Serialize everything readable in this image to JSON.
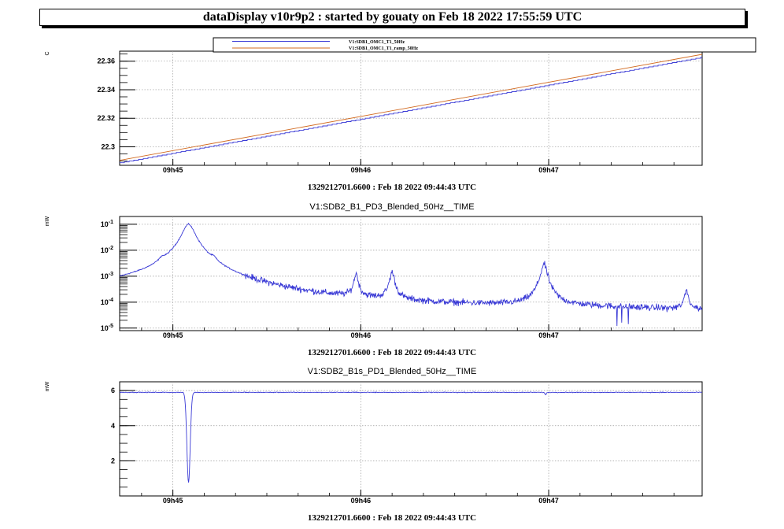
{
  "header": {
    "title": "dataDisplay v10r9p2 : started by gouaty on Feb 18 2022 17:55:59 UTC"
  },
  "colors": {
    "blue": "#3b3bd6",
    "orange": "#d2691e",
    "grid": "#9a9a9a"
  },
  "chart_data": [
    {
      "type": "line",
      "title": "",
      "unit_label": "C",
      "xlabel": "1329212701.6600 : Feb 18 2022 09:44:43 UTC",
      "x_ticks": [
        "09h45",
        "09h46",
        "09h47"
      ],
      "x_tick_seconds": [
        17,
        77,
        137
      ],
      "xlim_seconds": [
        0,
        186
      ],
      "ylim": [
        22.287,
        22.367
      ],
      "y_ticks": [
        "22.3",
        "22.32",
        "22.34",
        "22.36"
      ],
      "y_tick_values": [
        22.3,
        22.32,
        22.34,
        22.36
      ],
      "y_scale": "linear",
      "grid": true,
      "legend": {
        "placement": "top",
        "entries": [
          "V1:SDB1_OMC1_T1_50Hz",
          "V1:SDB1_OMC1_T1_ramp_50Hz"
        ]
      },
      "series": [
        {
          "name": "V1:SDB1_OMC1_T1_50Hz",
          "color": "blue",
          "x": [
            0,
            186
          ],
          "values": [
            22.2885,
            22.3625
          ],
          "stepped": true
        },
        {
          "name": "V1:SDB1_OMC1_T1_ramp_50Hz",
          "color": "orange",
          "x": [
            0,
            186
          ],
          "values": [
            22.2905,
            22.3648
          ]
        }
      ]
    },
    {
      "type": "line",
      "title": "V1:SDB2_B1_PD3_Blended_50Hz__TIME",
      "unit_label": "mW",
      "xlabel": "1329212701.6600 : Feb 18 2022 09:44:43 UTC",
      "x_ticks": [
        "09h45",
        "09h46",
        "09h47"
      ],
      "x_tick_seconds": [
        17,
        77,
        137
      ],
      "xlim_seconds": [
        0,
        186
      ],
      "ylim": [
        8e-06,
        0.2
      ],
      "y_scale": "log",
      "y_tick_labels": [
        {
          "base": "10",
          "exp": "-1",
          "value": 0.1
        },
        {
          "base": "10",
          "exp": "-2",
          "value": 0.01
        },
        {
          "base": "10",
          "exp": "-3",
          "value": 0.001
        },
        {
          "base": "10",
          "exp": "-4",
          "value": 0.0001
        },
        {
          "base": "10",
          "exp": "-5",
          "value": 1e-05
        }
      ],
      "grid": true,
      "series": [
        {
          "name": "",
          "color": "blue",
          "baseline_points": [
            [
              0,
              0.00035
            ],
            [
              10,
              0.00045
            ],
            [
              14,
              0.0006
            ],
            [
              18,
              0.0008
            ],
            [
              20,
              0.0007
            ],
            [
              25,
              0.0006
            ],
            [
              35,
              0.00012
            ],
            [
              60,
              6e-05
            ],
            [
              100,
              5e-05
            ],
            [
              150,
              5e-05
            ],
            [
              186,
              4e-05
            ]
          ],
          "peaks": [
            {
              "x": 13.5,
              "value": 0.0013,
              "width": 0.8
            },
            {
              "x": 22,
              "value": 0.1,
              "width": 1.8
            },
            {
              "x": 30,
              "value": 0.0013,
              "width": 0.8
            },
            {
              "x": 75.5,
              "value": 0.0011,
              "width": 0.6
            },
            {
              "x": 87,
              "value": 0.0013,
              "width": 0.7
            },
            {
              "x": 135.5,
              "value": 0.0028,
              "width": 0.9
            },
            {
              "x": 181,
              "value": 0.00022,
              "width": 0.6
            }
          ],
          "noise_factor": 1.35,
          "dip": {
            "x_range": [
              155,
              165
            ],
            "min": 1e-05
          }
        }
      ]
    },
    {
      "type": "line",
      "title": "V1:SDB2_B1s_PD1_Blended_50Hz__TIME",
      "unit_label": "mW",
      "xlabel": "1329212701.6600 : Feb 18 2022 09:44:43 UTC",
      "x_ticks": [
        "09h45",
        "09h46",
        "09h47"
      ],
      "x_tick_seconds": [
        17,
        77,
        137
      ],
      "xlim_seconds": [
        0,
        186
      ],
      "ylim": [
        0,
        6.5
      ],
      "y_ticks": [
        "2",
        "4",
        "6"
      ],
      "y_tick_values": [
        2,
        4,
        6
      ],
      "y_scale": "linear",
      "grid": true,
      "series": [
        {
          "name": "",
          "color": "blue",
          "level": 5.9,
          "noise": 0.03,
          "dips": [
            {
              "x": 22,
              "value": 0.75,
              "width": 0.7
            },
            {
              "x": 136,
              "value": 5.75,
              "width": 0.3
            }
          ]
        }
      ]
    }
  ]
}
